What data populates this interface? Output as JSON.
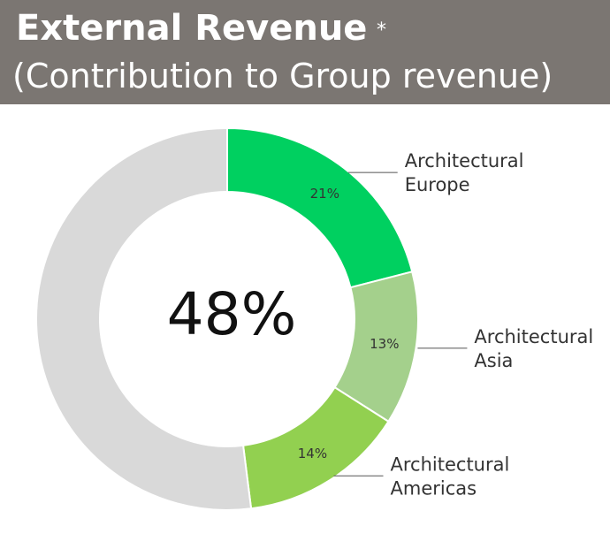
{
  "header": {
    "title": "External Revenue",
    "asterisk": "*",
    "subtitle": "(Contribution to Group revenue)"
  },
  "chart_data": {
    "type": "pie",
    "total_label": "48%",
    "slices": [
      {
        "name": "Architectural Europe",
        "name_lines": [
          "Architectural",
          "Europe"
        ],
        "value": 21,
        "label": "21%",
        "color": "#00d060"
      },
      {
        "name": "Architectural Asia",
        "name_lines": [
          "Architectural",
          "Asia"
        ],
        "value": 13,
        "label": "13%",
        "color": "#a4d08c"
      },
      {
        "name": "Architectural Americas",
        "name_lines": [
          "Architectural",
          "Americas"
        ],
        "value": 14,
        "label": "14%",
        "color": "#92d050"
      },
      {
        "name": "",
        "name_lines": [],
        "value": 52,
        "label": "",
        "color": "#d9d9d9"
      }
    ],
    "start_angle_deg": 0,
    "direction": "clockwise"
  }
}
